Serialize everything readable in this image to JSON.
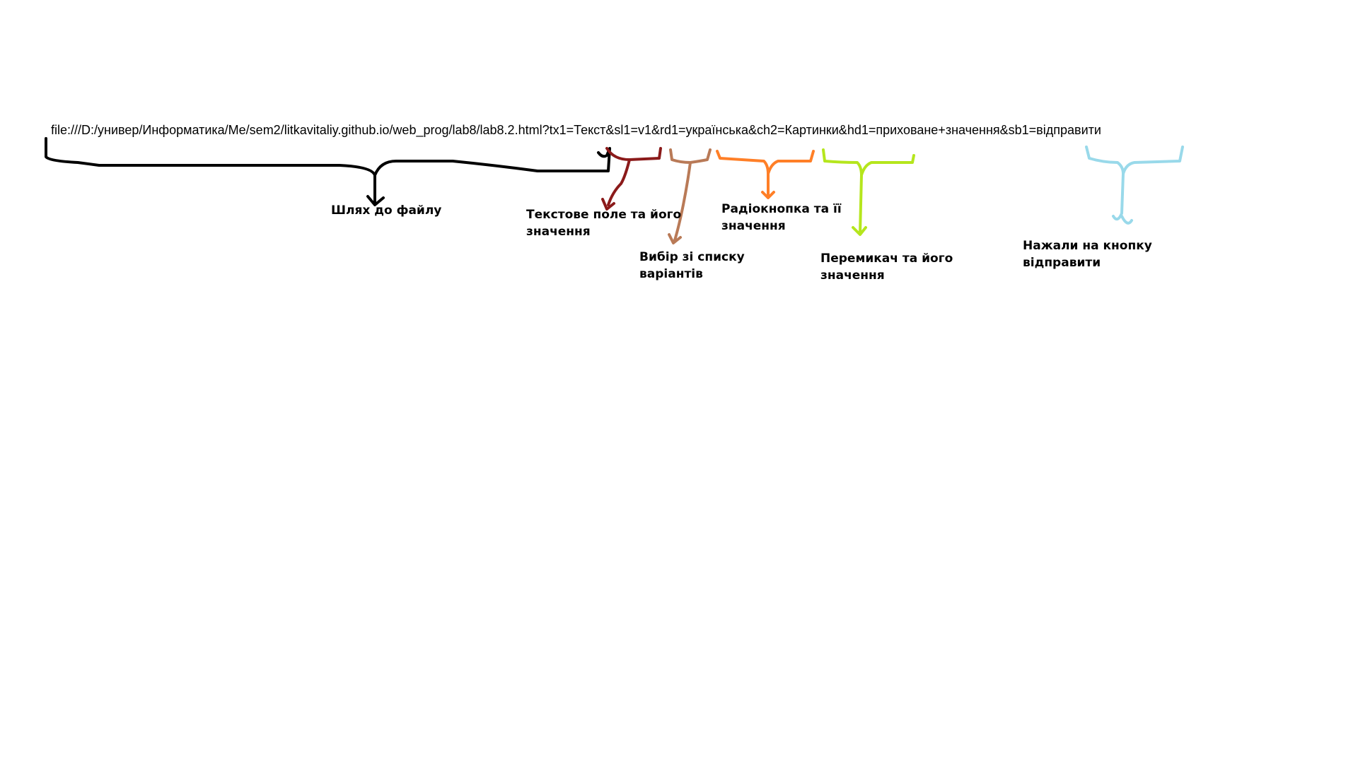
{
  "url": "file:///D:/универ/Информатика/Me/sem2/litkavitaliy.github.io/web_prog/lab8/lab8.2.html?tx1=Текст&sl1=v1&rd1=українська&ch2=Картинки&hd1=приховане+значення&sb1=відправити",
  "annotations": [
    {
      "id": "path",
      "line1": "Шлях до файлу",
      "line2": "",
      "color": "#000000"
    },
    {
      "id": "text",
      "line1": "Текстове поле та його",
      "line2": "значення",
      "color": "#8b1a1a"
    },
    {
      "id": "select",
      "line1": "Вибір зі списку",
      "line2": "варіантів",
      "color": "#b97a57"
    },
    {
      "id": "radio",
      "line1": "Радіокнопка та її",
      "line2": "значення",
      "color": "#ff7f27"
    },
    {
      "id": "switch",
      "line1": "Перемикач та його",
      "line2": "значення",
      "color": "#b5e61d"
    },
    {
      "id": "submit",
      "line1": "Нажали на кнопку",
      "line2": "відправити",
      "color": "#99d9ea"
    }
  ]
}
